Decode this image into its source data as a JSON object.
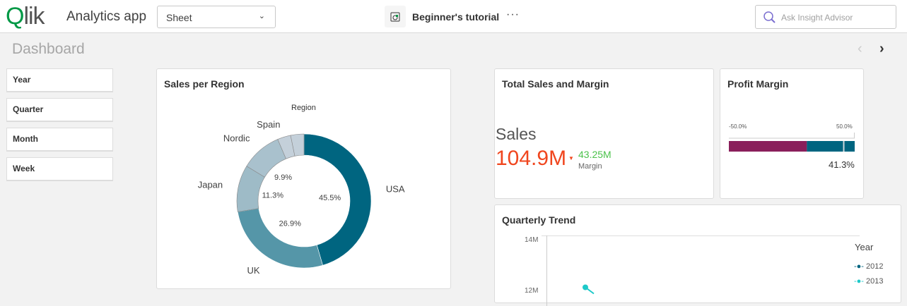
{
  "header": {
    "logo_text": "Qlik",
    "app_title": "Analytics app",
    "sheet_selector": "Sheet",
    "tutorial_label": "Beginner's tutorial",
    "more_icon": "ellipsis-icon",
    "search_placeholder": "Ask Insight Advisor"
  },
  "sheet": {
    "title": "Dashboard"
  },
  "filters": [
    {
      "label": "Year"
    },
    {
      "label": "Quarter"
    },
    {
      "label": "Month"
    },
    {
      "label": "Week"
    }
  ],
  "kpi": {
    "title": "Total Sales and Margin",
    "main_label": "Sales",
    "main_value": "104.9M",
    "main_color": "#f0461e",
    "secondary_value": "43.25M",
    "secondary_label": "Margin",
    "secondary_color": "#4bc24b"
  },
  "gauge": {
    "title": "Profit Margin",
    "min_label": "-50.0%",
    "max_label": "50.0%",
    "value_label": "41.3%",
    "value": 41.3,
    "range": [
      -50,
      50
    ],
    "bands": [
      {
        "to": 12,
        "color": "#8a1f5b"
      },
      {
        "to": 50,
        "color": "#006580"
      }
    ]
  },
  "chart_data": [
    {
      "type": "pie",
      "title": "Sales per Region",
      "legend_title": "Region",
      "donut": true,
      "slices": [
        {
          "name": "USA",
          "value": 45.5,
          "label": "45.5%",
          "color": "#006580"
        },
        {
          "name": "UK",
          "value": 26.9,
          "label": "26.9%",
          "color": "#5596a8"
        },
        {
          "name": "Japan",
          "value": 11.3,
          "label": "11.3%",
          "color": "#9ebbc7"
        },
        {
          "name": "Nordic",
          "value": 9.9,
          "label": "9.9%",
          "color": "#a9c1cd"
        },
        {
          "name": "Spain",
          "value": 3.2,
          "label": "",
          "color": "#c4d0da"
        },
        {
          "name": "",
          "value": 3.2,
          "label": "",
          "color": "#c4d0da"
        }
      ]
    },
    {
      "type": "line",
      "title": "Quarterly Trend",
      "yticks": [
        "14M",
        "12M"
      ],
      "legend_title": "Year",
      "legend_placement": "right",
      "series": [
        {
          "name": "2012",
          "color": "#006580",
          "values": []
        },
        {
          "name": "2013",
          "color": "#1ec9c9",
          "values": [
            12.1
          ]
        }
      ]
    }
  ]
}
